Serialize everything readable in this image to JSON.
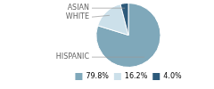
{
  "chart_data": {
    "type": "pie",
    "categories": [
      "HISPANIC",
      "WHITE",
      "ASIAN"
    ],
    "values": [
      79.8,
      16.2,
      4.0
    ],
    "value_labels": [
      "79.8%",
      "16.2%",
      "4.0%"
    ],
    "colors": [
      "#7fa8ba",
      "#cce0ea",
      "#2d5a7b"
    ],
    "legend": "bottom"
  }
}
